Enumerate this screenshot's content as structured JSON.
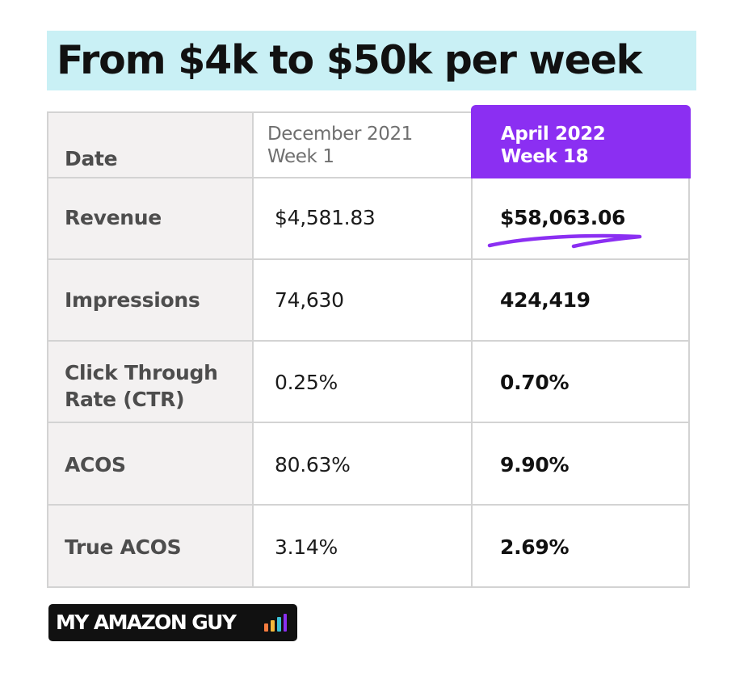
{
  "title": "From $4k to $50k per week",
  "table": {
    "row_header_label": "Date",
    "columns": [
      {
        "line1": "December 2021",
        "line2": "Week 1"
      },
      {
        "line1": "April 2022",
        "line2": "Week 18"
      }
    ],
    "rows": [
      {
        "label": "Revenue",
        "before": "$4,581.83",
        "after": "$58,063.06"
      },
      {
        "label": "Impressions",
        "before": "74,630",
        "after": "424,419"
      },
      {
        "label": "Click Through Rate (CTR)",
        "before": "0.25%",
        "after": "0.70%"
      },
      {
        "label": "ACOS",
        "before": "80.63%",
        "after": "9.90%"
      },
      {
        "label": "True ACOS",
        "before": "3.14%",
        "after": "2.69%"
      }
    ]
  },
  "brand": {
    "name": "MY AMAZON GUY",
    "icon": "bar-chart-icon",
    "icon_colors": [
      "#f47b3f",
      "#f5b83a",
      "#3bc0d6",
      "#8b2ff2"
    ]
  },
  "colors": {
    "title_highlight": "#c9f0f5",
    "accent": "#8b2ff2",
    "label_column": "#f3f1f1",
    "grid_lines": "#d3d3d3"
  }
}
